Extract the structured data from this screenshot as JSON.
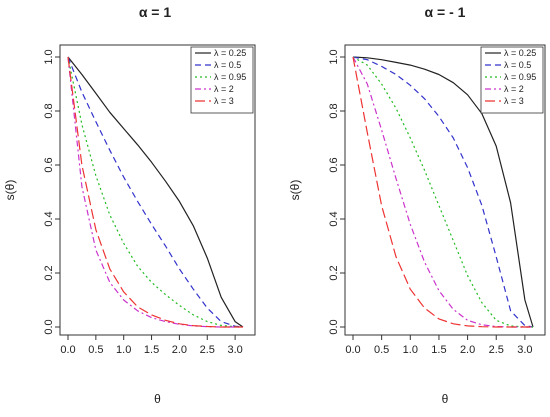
{
  "chart_data": [
    {
      "type": "line",
      "title": "α = 1",
      "xlabel": "θ",
      "ylabel": "s(θ)",
      "xlim": [
        0,
        3.14159
      ],
      "ylim": [
        0,
        1
      ],
      "xticks": [
        "0.0",
        "0.5",
        "1.0",
        "1.5",
        "2.0",
        "2.5",
        "3.0"
      ],
      "yticks": [
        "0.0",
        "0.2",
        "0.4",
        "0.6",
        "0.8",
        "1.0"
      ],
      "legend_position": "top-right",
      "grid": false,
      "x": [
        0,
        0.25,
        0.5,
        0.75,
        1.0,
        1.25,
        1.5,
        1.75,
        2.0,
        2.25,
        2.5,
        2.75,
        3.0,
        3.14159
      ],
      "series": [
        {
          "name": "λ = 0.25",
          "color": "#222222",
          "dash": "solid",
          "values": [
            1.0,
            0.935,
            0.865,
            0.795,
            0.735,
            0.675,
            0.61,
            0.54,
            0.465,
            0.375,
            0.255,
            0.11,
            0.02,
            0.0
          ]
        },
        {
          "name": "λ = 0.5",
          "color": "#3333cc",
          "dash": "dashed",
          "values": [
            1.0,
            0.87,
            0.76,
            0.655,
            0.555,
            0.465,
            0.38,
            0.3,
            0.215,
            0.14,
            0.07,
            0.02,
            0.003,
            0.0
          ]
        },
        {
          "name": "λ = 0.95",
          "color": "#22bb22",
          "dash": "dotted",
          "values": [
            1.0,
            0.75,
            0.56,
            0.415,
            0.31,
            0.225,
            0.165,
            0.12,
            0.08,
            0.045,
            0.02,
            0.006,
            0.001,
            0.0
          ]
        },
        {
          "name": "λ = 2",
          "color": "#cc33cc",
          "dash": "dashdot",
          "values": [
            1.0,
            0.52,
            0.285,
            0.165,
            0.1,
            0.06,
            0.035,
            0.02,
            0.01,
            0.004,
            0.001,
            0.0,
            0.0,
            0.0
          ]
        },
        {
          "name": "λ = 3",
          "color": "#ee3333",
          "dash": "longdash",
          "values": [
            1.0,
            0.6,
            0.36,
            0.215,
            0.13,
            0.075,
            0.045,
            0.025,
            0.012,
            0.005,
            0.002,
            0.0,
            0.0,
            0.0
          ]
        }
      ]
    },
    {
      "type": "line",
      "title": "α = - 1",
      "xlabel": "θ",
      "ylabel": "s(θ)",
      "xlim": [
        0,
        3.14159
      ],
      "ylim": [
        0,
        1
      ],
      "xticks": [
        "0.0",
        "0.5",
        "1.0",
        "1.5",
        "2.0",
        "2.5",
        "3.0"
      ],
      "yticks": [
        "0.0",
        "0.2",
        "0.4",
        "0.6",
        "0.8",
        "1.0"
      ],
      "legend_position": "top-right",
      "grid": false,
      "x": [
        0,
        0.25,
        0.5,
        0.75,
        1.0,
        1.25,
        1.5,
        1.75,
        2.0,
        2.25,
        2.5,
        2.75,
        3.0,
        3.14159
      ],
      "series": [
        {
          "name": "λ = 0.25",
          "color": "#222222",
          "dash": "solid",
          "values": [
            1.0,
            0.997,
            0.99,
            0.98,
            0.97,
            0.955,
            0.935,
            0.905,
            0.86,
            0.79,
            0.67,
            0.46,
            0.1,
            0.0
          ]
        },
        {
          "name": "λ = 0.5",
          "color": "#3333cc",
          "dash": "dashed",
          "values": [
            1.0,
            0.99,
            0.965,
            0.935,
            0.895,
            0.845,
            0.78,
            0.7,
            0.59,
            0.45,
            0.26,
            0.06,
            0.005,
            0.0
          ]
        },
        {
          "name": "λ = 0.95",
          "color": "#22bb22",
          "dash": "dotted",
          "values": [
            1.0,
            0.97,
            0.9,
            0.81,
            0.7,
            0.58,
            0.45,
            0.32,
            0.19,
            0.09,
            0.025,
            0.004,
            0.0,
            0.0
          ]
        },
        {
          "name": "λ = 2",
          "color": "#cc33cc",
          "dash": "dashdot",
          "values": [
            1.0,
            0.9,
            0.73,
            0.55,
            0.38,
            0.24,
            0.135,
            0.065,
            0.025,
            0.008,
            0.002,
            0.0,
            0.0,
            0.0
          ]
        },
        {
          "name": "λ = 3",
          "color": "#ee3333",
          "dash": "longdash",
          "values": [
            1.0,
            0.72,
            0.45,
            0.26,
            0.14,
            0.07,
            0.03,
            0.012,
            0.004,
            0.001,
            0.0,
            0.0,
            0.0,
            0.0
          ]
        }
      ]
    }
  ]
}
